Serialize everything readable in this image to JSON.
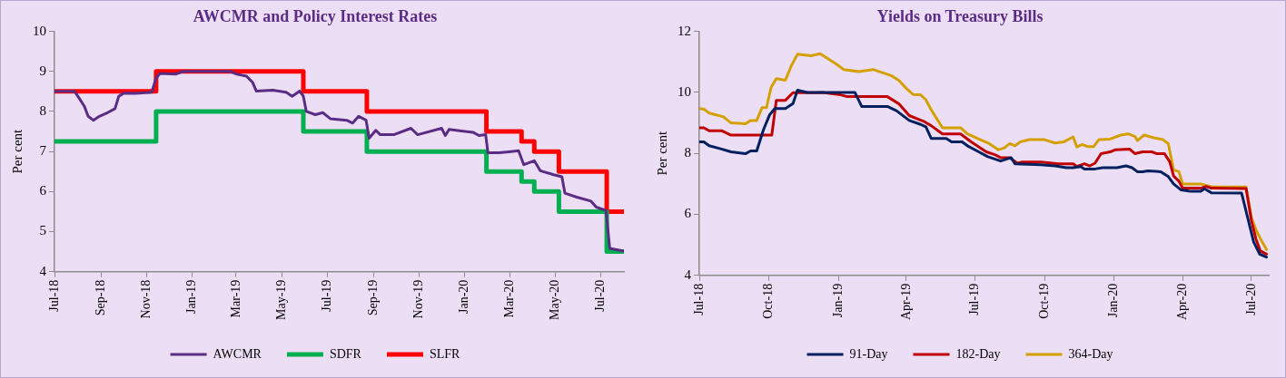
{
  "chart_data": [
    {
      "type": "line",
      "title": "AWCMR and Policy Interest Rates",
      "ylabel": "Per cent",
      "xlim": [
        "2018-07-01",
        "2020-08-01"
      ],
      "xticks": [
        {
          "value": "2018-07-01",
          "label": "Jul-18"
        },
        {
          "value": "2018-09-01",
          "label": "Sep-18"
        },
        {
          "value": "2018-11-01",
          "label": "Nov-18"
        },
        {
          "value": "2019-01-01",
          "label": "Jan-19"
        },
        {
          "value": "2019-03-01",
          "label": "Mar-19"
        },
        {
          "value": "2019-05-01",
          "label": "May-19"
        },
        {
          "value": "2019-07-01",
          "label": "Jul-19"
        },
        {
          "value": "2019-09-01",
          "label": "Sep-19"
        },
        {
          "value": "2019-11-01",
          "label": "Nov-19"
        },
        {
          "value": "2020-01-01",
          "label": "Jan-20"
        },
        {
          "value": "2020-03-01",
          "label": "Mar-20"
        },
        {
          "value": "2020-05-01",
          "label": "May-20"
        },
        {
          "value": "2020-07-01",
          "label": "Jul-20"
        }
      ],
      "ylim": [
        4,
        10
      ],
      "yticks": [
        4,
        5,
        6,
        7,
        8,
        9,
        10
      ],
      "legend": "bottom",
      "marker": "none",
      "grid": false,
      "series": [
        {
          "name": "AWCMR",
          "type": "line",
          "color": "#5b2c83",
          "x": [
            "2018-07-01",
            "2018-07-28",
            "2018-08-03",
            "2018-08-10",
            "2018-08-15",
            "2018-08-22",
            "2018-08-30",
            "2018-09-10",
            "2018-09-20",
            "2018-09-25",
            "2018-10-02",
            "2018-10-18",
            "2018-11-08",
            "2018-11-14",
            "2018-11-19",
            "2018-12-10",
            "2018-12-20",
            "2019-02-21",
            "2019-03-02",
            "2019-03-15",
            "2019-03-23",
            "2019-03-28",
            "2019-04-19",
            "2019-05-07",
            "2019-05-15",
            "2019-05-25",
            "2019-05-30",
            "2019-06-03",
            "2019-06-15",
            "2019-06-25",
            "2019-07-05",
            "2019-07-27",
            "2019-08-04",
            "2019-08-12",
            "2019-08-22",
            "2019-08-26",
            "2019-09-04",
            "2019-09-10",
            "2019-09-28",
            "2019-10-21",
            "2019-10-30",
            "2019-12-01",
            "2019-12-06",
            "2019-12-11",
            "2020-01-12",
            "2020-01-20",
            "2020-01-29",
            "2020-02-01",
            "2020-02-16",
            "2020-03-03",
            "2020-03-13",
            "2020-03-20",
            "2020-04-03",
            "2020-04-11",
            "2020-04-29",
            "2020-05-10",
            "2020-05-14",
            "2020-05-30",
            "2020-06-18",
            "2020-06-25",
            "2020-07-08",
            "2020-07-13",
            "2020-08-01"
          ],
          "values": [
            8.5,
            8.5,
            8.33,
            8.13,
            7.88,
            7.78,
            7.88,
            7.97,
            8.07,
            8.38,
            8.46,
            8.45,
            8.48,
            8.83,
            8.95,
            8.93,
            9.0,
            9.0,
            8.93,
            8.88,
            8.73,
            8.51,
            8.53,
            8.48,
            8.38,
            8.51,
            8.38,
            8.0,
            7.92,
            7.97,
            7.82,
            7.78,
            7.71,
            7.88,
            7.78,
            7.33,
            7.53,
            7.42,
            7.42,
            7.58,
            7.42,
            7.58,
            7.4,
            7.55,
            7.48,
            7.4,
            7.42,
            6.97,
            6.97,
            7.0,
            7.02,
            6.67,
            6.77,
            6.52,
            6.42,
            6.37,
            5.96,
            5.86,
            5.76,
            5.61,
            5.53,
            4.58,
            4.51
          ]
        },
        {
          "name": "SDFR",
          "type": "step",
          "color": "#00b050",
          "x": [
            "2018-07-01",
            "2018-11-14",
            "2019-05-30",
            "2019-08-23",
            "2020-01-30",
            "2020-03-17",
            "2020-04-03",
            "2020-05-06",
            "2020-07-09",
            "2020-08-01"
          ],
          "values": [
            7.25,
            8.0,
            7.5,
            7.0,
            6.5,
            6.25,
            6.0,
            5.5,
            4.5,
            4.5
          ]
        },
        {
          "name": "SLFR",
          "type": "step",
          "color": "#ff0000",
          "x": [
            "2018-07-01",
            "2018-11-14",
            "2019-05-30",
            "2019-08-23",
            "2020-01-30",
            "2020-03-17",
            "2020-04-03",
            "2020-05-06",
            "2020-07-09",
            "2020-08-01"
          ],
          "values": [
            8.5,
            9.0,
            8.5,
            8.0,
            7.5,
            7.25,
            7.0,
            6.5,
            5.5,
            5.5
          ]
        }
      ]
    },
    {
      "type": "line",
      "title": "Yields on Treasury Bills",
      "ylabel": "Per cent",
      "xlim": [
        "2018-07-01",
        "2020-07-24"
      ],
      "xticks": [
        {
          "value": "2018-07-01",
          "label": "Jul-18"
        },
        {
          "value": "2018-10-01",
          "label": "Oct-18"
        },
        {
          "value": "2019-01-01",
          "label": "Jan-19"
        },
        {
          "value": "2019-04-01",
          "label": "Apr-19"
        },
        {
          "value": "2019-07-01",
          "label": "Jul-19"
        },
        {
          "value": "2019-10-01",
          "label": "Oct-19"
        },
        {
          "value": "2020-01-01",
          "label": "Jan-20"
        },
        {
          "value": "2020-04-01",
          "label": "Apr-20"
        },
        {
          "value": "2020-07-01",
          "label": "Jul-20"
        }
      ],
      "ylim": [
        4,
        12
      ],
      "yticks": [
        4,
        6,
        8,
        10,
        12
      ],
      "legend": "bottom",
      "marker": "none",
      "grid": false,
      "series": [
        {
          "name": "91-Day",
          "color": "#002060",
          "x": [
            "2018-07-01",
            "2018-07-07",
            "2018-07-14",
            "2018-07-28",
            "2018-08-12",
            "2018-08-31",
            "2018-09-07",
            "2018-09-15",
            "2018-09-24",
            "2018-10-02",
            "2018-10-09",
            "2018-10-23",
            "2018-11-02",
            "2018-11-08",
            "2018-11-21",
            "2019-01-23",
            "2019-02-01",
            "2019-03-07",
            "2019-03-19",
            "2019-04-05",
            "2019-04-20",
            "2019-04-27",
            "2019-05-04",
            "2019-05-24",
            "2019-05-31",
            "2019-06-14",
            "2019-06-21",
            "2019-07-06",
            "2019-07-18",
            "2019-08-04",
            "2019-08-18",
            "2019-08-23",
            "2019-09-26",
            "2019-10-15",
            "2019-10-30",
            "2019-11-08",
            "2019-11-18",
            "2019-11-23",
            "2019-12-07",
            "2019-12-17",
            "2020-01-05",
            "2020-01-17",
            "2020-01-25",
            "2020-02-01",
            "2020-02-08",
            "2020-02-15",
            "2020-03-03",
            "2020-03-13",
            "2020-03-20",
            "2020-03-30",
            "2020-04-11",
            "2020-04-25",
            "2020-04-30",
            "2020-05-09",
            "2020-06-18",
            "2020-06-27",
            "2020-07-04",
            "2020-07-12",
            "2020-07-21"
          ],
          "values": [
            8.38,
            8.38,
            8.25,
            8.16,
            8.05,
            7.99,
            8.08,
            8.08,
            8.78,
            9.26,
            9.47,
            9.47,
            9.63,
            10.07,
            10.0,
            10.0,
            9.54,
            9.54,
            9.4,
            9.08,
            8.95,
            8.87,
            8.49,
            8.49,
            8.38,
            8.38,
            8.25,
            8.05,
            7.89,
            7.75,
            7.86,
            7.66,
            7.63,
            7.59,
            7.53,
            7.53,
            7.57,
            7.49,
            7.49,
            7.53,
            7.53,
            7.59,
            7.53,
            7.4,
            7.4,
            7.43,
            7.4,
            7.24,
            7.0,
            6.8,
            6.76,
            6.76,
            6.84,
            6.71,
            6.7,
            5.8,
            5.1,
            4.7,
            4.6
          ]
        },
        {
          "name": "182-Day",
          "color": "#c00000",
          "x": [
            "2018-07-01",
            "2018-07-07",
            "2018-07-14",
            "2018-07-31",
            "2018-08-12",
            "2018-09-27",
            "2018-10-05",
            "2018-10-11",
            "2018-10-23",
            "2018-11-02",
            "2018-12-01",
            "2018-12-11",
            "2019-01-04",
            "2019-01-13",
            "2019-03-07",
            "2019-03-22",
            "2019-04-05",
            "2019-04-25",
            "2019-05-04",
            "2019-05-19",
            "2019-06-12",
            "2019-06-26",
            "2019-07-16",
            "2019-07-28",
            "2019-08-04",
            "2019-08-16",
            "2019-08-26",
            "2019-09-02",
            "2019-09-26",
            "2019-10-20",
            "2019-11-08",
            "2019-11-13",
            "2019-11-23",
            "2019-11-30",
            "2019-12-07",
            "2019-12-15",
            "2019-12-27",
            "2020-01-03",
            "2020-01-22",
            "2020-01-29",
            "2020-02-08",
            "2020-02-20",
            "2020-02-27",
            "2020-03-08",
            "2020-03-15",
            "2020-03-20",
            "2020-03-27",
            "2020-04-01",
            "2020-04-25",
            "2020-05-02",
            "2020-05-09",
            "2020-06-24",
            "2020-07-01",
            "2020-07-07",
            "2020-07-13",
            "2020-07-21"
          ],
          "values": [
            8.84,
            8.84,
            8.74,
            8.74,
            8.6,
            8.6,
            8.6,
            9.74,
            9.74,
            9.99,
            9.99,
            10.0,
            9.92,
            9.86,
            9.86,
            9.63,
            9.24,
            9.04,
            8.91,
            8.64,
            8.64,
            8.38,
            8.05,
            7.95,
            7.86,
            7.86,
            7.68,
            7.72,
            7.72,
            7.66,
            7.66,
            7.57,
            7.66,
            7.59,
            7.68,
            7.99,
            8.05,
            8.12,
            8.14,
            7.99,
            8.05,
            8.05,
            7.99,
            7.99,
            7.72,
            7.26,
            7.09,
            6.86,
            6.86,
            6.92,
            6.86,
            6.85,
            5.8,
            5.2,
            4.8,
            4.7
          ]
        },
        {
          "name": "364-Day",
          "color": "#d4a000",
          "x": [
            "2018-07-01",
            "2018-07-07",
            "2018-07-14",
            "2018-08-02",
            "2018-08-12",
            "2018-08-31",
            "2018-09-07",
            "2018-09-15",
            "2018-09-22",
            "2018-09-28",
            "2018-10-04",
            "2018-10-11",
            "2018-10-23",
            "2018-10-31",
            "2018-11-08",
            "2018-11-26",
            "2018-12-08",
            "2018-12-30",
            "2019-01-08",
            "2019-01-28",
            "2019-02-16",
            "2019-03-12",
            "2019-03-22",
            "2019-03-31",
            "2019-04-10",
            "2019-04-20",
            "2019-04-27",
            "2019-05-04",
            "2019-05-19",
            "2019-06-12",
            "2019-06-21",
            "2019-07-06",
            "2019-07-20",
            "2019-08-01",
            "2019-08-09",
            "2019-08-16",
            "2019-08-23",
            "2019-08-30",
            "2019-09-11",
            "2019-10-01",
            "2019-10-15",
            "2019-10-27",
            "2019-11-08",
            "2019-11-13",
            "2019-11-20",
            "2019-11-28",
            "2019-12-05",
            "2019-12-12",
            "2019-12-27",
            "2020-01-10",
            "2020-01-20",
            "2020-01-29",
            "2020-02-01",
            "2020-02-10",
            "2020-02-23",
            "2020-03-06",
            "2020-03-13",
            "2020-03-20",
            "2020-03-27",
            "2020-04-01",
            "2020-04-25",
            "2020-05-09",
            "2020-06-24",
            "2020-07-01",
            "2020-07-07",
            "2020-07-13",
            "2020-07-21"
          ],
          "values": [
            9.47,
            9.45,
            9.32,
            9.2,
            9.0,
            8.97,
            9.08,
            9.08,
            9.5,
            9.5,
            10.16,
            10.45,
            10.4,
            10.88,
            11.25,
            11.2,
            11.27,
            10.92,
            10.75,
            10.68,
            10.75,
            10.55,
            10.4,
            10.16,
            9.93,
            9.92,
            9.76,
            9.43,
            8.84,
            8.84,
            8.64,
            8.47,
            8.32,
            8.12,
            8.18,
            8.32,
            8.25,
            8.38,
            8.45,
            8.45,
            8.34,
            8.38,
            8.54,
            8.21,
            8.29,
            8.22,
            8.22,
            8.45,
            8.47,
            8.6,
            8.64,
            8.55,
            8.42,
            8.6,
            8.51,
            8.45,
            8.32,
            7.46,
            7.4,
            7.0,
            7.0,
            6.91,
            6.9,
            5.9,
            5.5,
            5.2,
            4.85
          ]
        }
      ]
    }
  ]
}
